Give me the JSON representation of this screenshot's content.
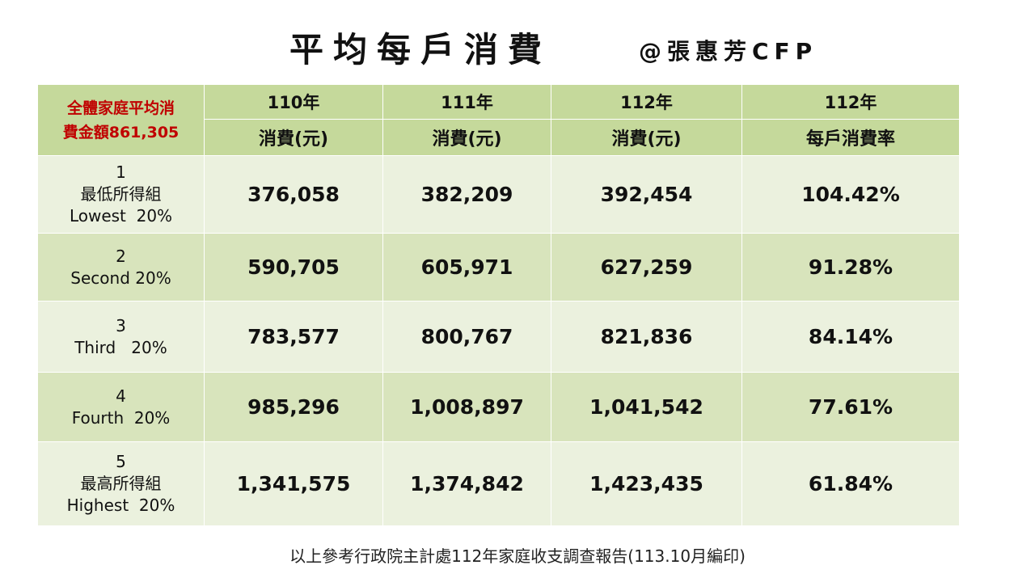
{
  "title": "平均每戶消費",
  "author": "@張惠芳CFP",
  "table": {
    "corner_lines": [
      "全體家庭平均消",
      "費金額861,305"
    ],
    "year_headers": [
      "110年",
      "111年",
      "112年",
      "112年"
    ],
    "unit_headers": [
      "消費(元)",
      "消費(元)",
      "消費(元)",
      "每戶消費率"
    ],
    "rows": [
      {
        "label_lines": [
          "1",
          "最低所得組",
          "Lowest  20%"
        ],
        "values": [
          "376,058",
          "382,209",
          "392,454",
          "104.42%"
        ]
      },
      {
        "label_lines": [
          "2",
          "Second 20%"
        ],
        "values": [
          "590,705",
          "605,971",
          "627,259",
          "91.28%"
        ]
      },
      {
        "label_lines": [
          "3",
          "Third   20%"
        ],
        "values": [
          "783,577",
          "800,767",
          "821,836",
          "84.14%"
        ]
      },
      {
        "label_lines": [
          "4",
          "Fourth  20%"
        ],
        "values": [
          "985,296",
          "1,008,897",
          "1,041,542",
          "77.61%"
        ]
      },
      {
        "label_lines": [
          "5",
          "最高所得組",
          "Highest  20%"
        ],
        "values": [
          "1,341,575",
          "1,374,842",
          "1,423,435",
          "61.84%"
        ]
      }
    ]
  },
  "source_note": "以上參考行政院主計處112年家庭收支調查報告(113.10月編印)",
  "colors": {
    "header_bg": "#c5d99b",
    "row_light": "#ebf1de",
    "row_dark": "#d8e4bc",
    "corner_text": "#c00000"
  }
}
